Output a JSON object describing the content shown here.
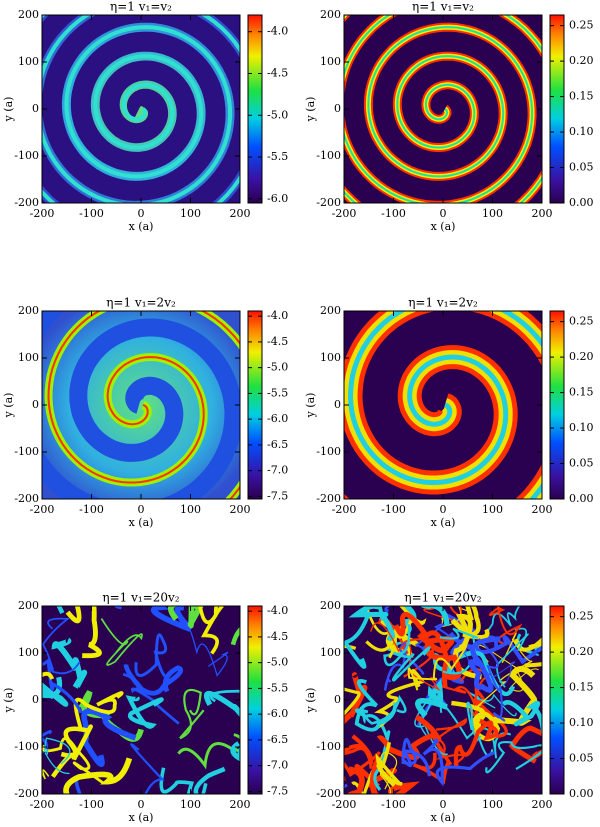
{
  "chart_data": [
    {
      "type": "heatmap",
      "title": "η=1 v₁=v₂",
      "xlabel": "x (a)",
      "ylabel": "y (a)",
      "xlim": [
        -200,
        200
      ],
      "ylim": [
        -200,
        200
      ],
      "xticks": [
        -200,
        -100,
        0,
        100,
        200
      ],
      "yticks": [
        -200,
        -100,
        0,
        100,
        200
      ],
      "colormap": "rainbow",
      "clim": [
        -6.05,
        -3.8
      ],
      "cticks": [
        {
          "value": -4,
          "label": "-4.0"
        },
        -4.5,
        {
          "value": -5,
          "label": "-5.0"
        },
        -5.5,
        {
          "value": -6,
          "label": "-6.0"
        }
      ]
    },
    {
      "type": "heatmap",
      "title": "η=1 v₁=v₂",
      "xlabel": "x (a)",
      "ylabel": "y (a)",
      "xlim": [
        -200,
        200
      ],
      "ylim": [
        -200,
        200
      ],
      "xticks": [
        -200,
        -100,
        0,
        100,
        200
      ],
      "yticks": [
        -200,
        -100,
        0,
        100,
        200
      ],
      "colormap": "rainbow",
      "clim": [
        0,
        0.265
      ],
      "cticks": [
        {
          "value": 0,
          "label": "0.00"
        },
        0.05,
        {
          "value": 0.1,
          "label": "0.10"
        },
        0.15,
        {
          "value": 0.2,
          "label": "0.20"
        },
        0.25
      ]
    },
    {
      "type": "heatmap",
      "title": "η=1 v₁=2v₂",
      "xlabel": "x (a)",
      "ylabel": "y (a)",
      "xlim": [
        -200,
        200
      ],
      "ylim": [
        -200,
        200
      ],
      "xticks": [
        -200,
        -100,
        0,
        100,
        200
      ],
      "yticks": [
        -200,
        -100,
        0,
        100,
        200
      ],
      "colormap": "rainbow",
      "clim": [
        -7.55,
        -3.9
      ],
      "cticks": [
        {
          "value": -4,
          "label": "-4.0"
        },
        -4.5,
        {
          "value": -5,
          "label": "-5.0"
        },
        -5.5,
        {
          "value": -6,
          "label": "-6.0"
        },
        -6.5,
        {
          "value": -7,
          "label": "-7.0"
        },
        -7.5
      ]
    },
    {
      "type": "heatmap",
      "title": "η=1 v₁=2v₂",
      "xlabel": "x (a)",
      "ylabel": "y (a)",
      "xlim": [
        -200,
        200
      ],
      "ylim": [
        -200,
        200
      ],
      "xticks": [
        -200,
        -100,
        0,
        100,
        200
      ],
      "yticks": [
        -200,
        -100,
        0,
        100,
        200
      ],
      "colormap": "rainbow",
      "clim": [
        0,
        0.265
      ],
      "cticks": [
        {
          "value": 0,
          "label": "0.00"
        },
        0.05,
        {
          "value": 0.1,
          "label": "0.10"
        },
        0.15,
        {
          "value": 0.2,
          "label": "0.20"
        },
        0.25
      ]
    },
    {
      "type": "heatmap",
      "title": "η=1 v₁=20v₂",
      "xlabel": "x (a)",
      "ylabel": "y (a)",
      "xlim": [
        -200,
        200
      ],
      "ylim": [
        -200,
        200
      ],
      "xticks": [
        -200,
        -100,
        0,
        100,
        200
      ],
      "yticks": [
        -200,
        -100,
        0,
        100,
        200
      ],
      "colormap": "rainbow",
      "clim": [
        -7.55,
        -3.9
      ],
      "cticks": [
        {
          "value": -4,
          "label": "-4.0"
        },
        -4.5,
        {
          "value": -5,
          "label": "-5.0"
        },
        -5.5,
        {
          "value": -6,
          "label": "-6.0"
        },
        -6.5,
        {
          "value": -7,
          "label": "-7.0"
        },
        -7.5
      ]
    },
    {
      "type": "heatmap",
      "title": "η=1 v₁=20v₂",
      "xlabel": "x (a)",
      "ylabel": "y (a)",
      "xlim": [
        -200,
        200
      ],
      "ylim": [
        -200,
        200
      ],
      "xticks": [
        -200,
        -100,
        0,
        100,
        200
      ],
      "yticks": [
        -200,
        -100,
        0,
        100,
        200
      ],
      "colormap": "rainbow",
      "clim": [
        0,
        0.265
      ],
      "cticks": [
        {
          "value": 0,
          "label": "0.00"
        },
        0.05,
        {
          "value": 0.1,
          "label": "0.10"
        },
        0.15,
        {
          "value": 0.2,
          "label": "0.20"
        },
        0.25
      ]
    }
  ]
}
